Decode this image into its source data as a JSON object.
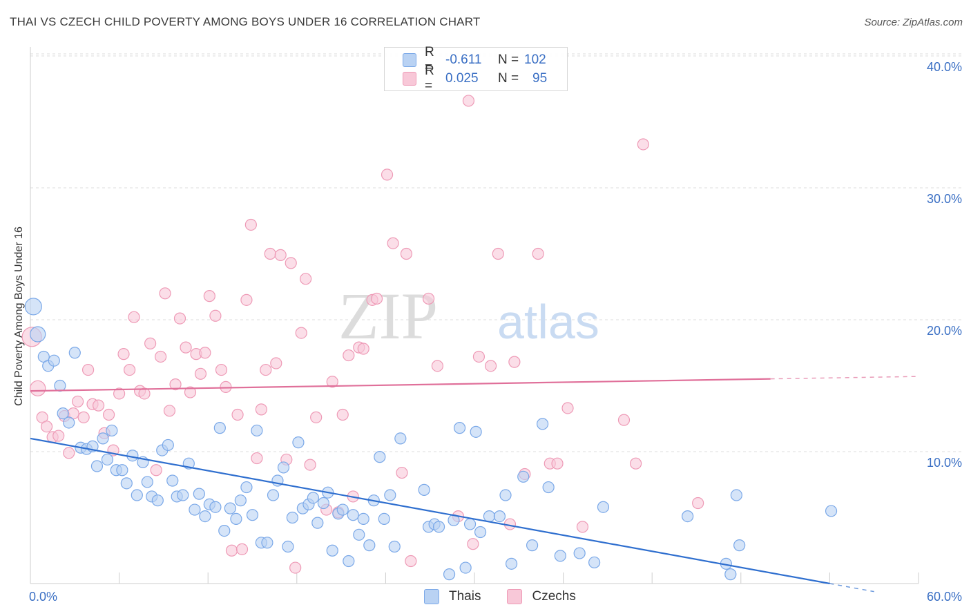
{
  "header": {
    "title": "THAI VS CZECH CHILD POVERTY AMONG BOYS UNDER 16 CORRELATION CHART",
    "source": "Source: ZipAtlas.com"
  },
  "watermark": {
    "zip": "ZIP",
    "atlas": "atlas"
  },
  "legend_top": {
    "rows": [
      {
        "r_label": "R =",
        "r_value": "-0.611",
        "n_label": "N =",
        "n_value": "102"
      },
      {
        "r_label": "R =",
        "r_value": "0.025",
        "n_label": "N =",
        "n_value": "95"
      }
    ]
  },
  "legend_bottom": {
    "items": [
      {
        "label": "Thais"
      },
      {
        "label": "Czechs"
      }
    ]
  },
  "chart_data": {
    "type": "scatter",
    "title": "THAI VS CZECH CHILD POVERTY AMONG BOYS UNDER 16 CORRELATION CHART",
    "xlabel": "",
    "ylabel": "Child Poverty Among Boys Under 16",
    "xlim": [
      0,
      60
    ],
    "ylim": [
      0,
      41
    ],
    "x_tick_labels": [
      "0.0%",
      "60.0%"
    ],
    "y_ticks": [
      10,
      20,
      30,
      40
    ],
    "y_tick_labels": [
      "10.0%",
      "20.0%",
      "30.0%",
      "40.0%"
    ],
    "grid": true,
    "legend_position": "top-center",
    "series": [
      {
        "name": "Thais",
        "color": "#7aa8e8",
        "fill": "#b9d2f3",
        "line_color": "#2f6fcf",
        "R": -0.611,
        "N": 102,
        "trend": {
          "x": [
            0,
            54
          ],
          "y": [
            11.0,
            0.0
          ],
          "dashed_from": 54
        },
        "points": [
          [
            0.2,
            21.0
          ],
          [
            0.5,
            18.9
          ],
          [
            0.9,
            17.2
          ],
          [
            1.2,
            16.5
          ],
          [
            1.6,
            16.9
          ],
          [
            2.0,
            15.0
          ],
          [
            2.2,
            12.9
          ],
          [
            2.6,
            12.2
          ],
          [
            3.0,
            17.5
          ],
          [
            3.4,
            10.3
          ],
          [
            3.8,
            10.2
          ],
          [
            4.2,
            10.4
          ],
          [
            4.5,
            8.9
          ],
          [
            4.9,
            11.0
          ],
          [
            5.2,
            9.4
          ],
          [
            5.5,
            11.6
          ],
          [
            5.8,
            8.6
          ],
          [
            6.2,
            8.6
          ],
          [
            6.5,
            7.6
          ],
          [
            6.9,
            9.7
          ],
          [
            7.2,
            6.7
          ],
          [
            7.6,
            9.2
          ],
          [
            7.9,
            7.7
          ],
          [
            8.2,
            6.6
          ],
          [
            8.6,
            6.3
          ],
          [
            8.9,
            10.1
          ],
          [
            9.3,
            10.5
          ],
          [
            9.6,
            7.8
          ],
          [
            9.9,
            6.6
          ],
          [
            10.3,
            6.7
          ],
          [
            10.7,
            9.1
          ],
          [
            11.1,
            5.6
          ],
          [
            11.4,
            6.8
          ],
          [
            11.8,
            5.1
          ],
          [
            12.1,
            6.0
          ],
          [
            12.5,
            5.8
          ],
          [
            12.8,
            11.8
          ],
          [
            13.1,
            4.0
          ],
          [
            13.5,
            5.7
          ],
          [
            13.9,
            4.9
          ],
          [
            14.2,
            6.3
          ],
          [
            14.6,
            7.3
          ],
          [
            15.0,
            5.2
          ],
          [
            15.3,
            11.6
          ],
          [
            15.6,
            3.1
          ],
          [
            16.0,
            3.1
          ],
          [
            16.4,
            6.7
          ],
          [
            16.7,
            7.8
          ],
          [
            17.1,
            8.8
          ],
          [
            17.4,
            2.8
          ],
          [
            17.7,
            5.0
          ],
          [
            18.1,
            10.7
          ],
          [
            18.4,
            5.7
          ],
          [
            18.8,
            6.0
          ],
          [
            19.1,
            6.5
          ],
          [
            19.4,
            4.6
          ],
          [
            19.8,
            6.1
          ],
          [
            20.1,
            6.9
          ],
          [
            20.4,
            2.5
          ],
          [
            20.8,
            5.3
          ],
          [
            21.1,
            5.6
          ],
          [
            21.5,
            1.7
          ],
          [
            21.8,
            5.2
          ],
          [
            22.2,
            3.7
          ],
          [
            22.5,
            4.9
          ],
          [
            22.9,
            2.9
          ],
          [
            23.2,
            6.3
          ],
          [
            23.6,
            9.6
          ],
          [
            23.9,
            4.9
          ],
          [
            24.3,
            6.7
          ],
          [
            24.6,
            2.8
          ],
          [
            25.0,
            11.0
          ],
          [
            26.6,
            7.1
          ],
          [
            26.9,
            4.3
          ],
          [
            27.3,
            4.5
          ],
          [
            27.6,
            4.3
          ],
          [
            28.3,
            0.7
          ],
          [
            28.6,
            4.8
          ],
          [
            29.0,
            11.8
          ],
          [
            29.4,
            1.2
          ],
          [
            29.7,
            4.5
          ],
          [
            30.1,
            11.5
          ],
          [
            30.4,
            3.9
          ],
          [
            31.0,
            5.1
          ],
          [
            31.7,
            5.1
          ],
          [
            32.1,
            6.7
          ],
          [
            32.5,
            1.5
          ],
          [
            33.3,
            8.1
          ],
          [
            33.9,
            2.9
          ],
          [
            34.6,
            12.1
          ],
          [
            35.0,
            7.3
          ],
          [
            35.8,
            2.1
          ],
          [
            37.1,
            2.3
          ],
          [
            38.1,
            1.6
          ],
          [
            38.7,
            5.8
          ],
          [
            44.4,
            5.1
          ],
          [
            47.0,
            1.5
          ],
          [
            47.3,
            0.7
          ],
          [
            47.7,
            6.7
          ],
          [
            47.9,
            2.9
          ],
          [
            54.1,
            5.5
          ]
        ]
      },
      {
        "name": "Czechs",
        "color": "#ee9ab6",
        "fill": "#f8c8d8",
        "line_color": "#e0709a",
        "R": 0.025,
        "N": 95,
        "trend": {
          "x": [
            0,
            60
          ],
          "y": [
            14.6,
            15.7
          ],
          "dashed_from": 50
        },
        "points": [
          [
            0.1,
            18.7
          ],
          [
            0.5,
            14.8
          ],
          [
            0.8,
            12.6
          ],
          [
            1.1,
            11.9
          ],
          [
            1.5,
            11.1
          ],
          [
            1.9,
            11.2
          ],
          [
            2.3,
            12.7
          ],
          [
            2.6,
            9.9
          ],
          [
            2.9,
            12.9
          ],
          [
            3.2,
            13.8
          ],
          [
            3.6,
            12.6
          ],
          [
            3.9,
            16.2
          ],
          [
            4.2,
            13.6
          ],
          [
            4.6,
            13.5
          ],
          [
            5.0,
            11.4
          ],
          [
            5.3,
            12.8
          ],
          [
            5.6,
            10.1
          ],
          [
            6.0,
            14.4
          ],
          [
            6.3,
            17.4
          ],
          [
            6.7,
            16.2
          ],
          [
            7.0,
            20.2
          ],
          [
            7.4,
            14.6
          ],
          [
            7.7,
            14.4
          ],
          [
            8.1,
            18.2
          ],
          [
            8.5,
            8.6
          ],
          [
            8.8,
            17.2
          ],
          [
            9.1,
            22.0
          ],
          [
            9.4,
            13.1
          ],
          [
            9.8,
            15.1
          ],
          [
            10.1,
            20.1
          ],
          [
            10.5,
            17.9
          ],
          [
            10.8,
            14.5
          ],
          [
            11.2,
            17.4
          ],
          [
            11.5,
            15.9
          ],
          [
            11.8,
            17.5
          ],
          [
            12.1,
            21.8
          ],
          [
            12.5,
            20.3
          ],
          [
            12.9,
            16.2
          ],
          [
            13.2,
            14.9
          ],
          [
            13.6,
            2.5
          ],
          [
            14.0,
            12.8
          ],
          [
            14.3,
            2.6
          ],
          [
            14.6,
            21.5
          ],
          [
            14.9,
            27.2
          ],
          [
            15.3,
            9.5
          ],
          [
            15.6,
            13.2
          ],
          [
            15.9,
            16.2
          ],
          [
            16.2,
            25.0
          ],
          [
            16.6,
            16.7
          ],
          [
            16.9,
            24.9
          ],
          [
            17.3,
            9.4
          ],
          [
            17.6,
            24.3
          ],
          [
            17.9,
            1.2
          ],
          [
            18.3,
            19.0
          ],
          [
            18.6,
            23.1
          ],
          [
            18.9,
            9.0
          ],
          [
            19.3,
            12.6
          ],
          [
            20.0,
            5.6
          ],
          [
            20.4,
            15.3
          ],
          [
            20.8,
            5.4
          ],
          [
            21.1,
            12.8
          ],
          [
            21.5,
            17.3
          ],
          [
            21.8,
            6.6
          ],
          [
            22.2,
            17.9
          ],
          [
            22.5,
            17.8
          ],
          [
            23.1,
            21.5
          ],
          [
            23.4,
            21.6
          ],
          [
            24.1,
            31.0
          ],
          [
            24.5,
            25.8
          ],
          [
            25.1,
            8.4
          ],
          [
            25.4,
            25.0
          ],
          [
            25.7,
            1.7
          ],
          [
            26.9,
            21.6
          ],
          [
            27.5,
            16.5
          ],
          [
            28.9,
            5.1
          ],
          [
            29.6,
            36.6
          ],
          [
            29.9,
            3.0
          ],
          [
            30.3,
            17.2
          ],
          [
            31.1,
            16.5
          ],
          [
            31.6,
            25.0
          ],
          [
            32.4,
            4.5
          ],
          [
            32.7,
            16.8
          ],
          [
            33.4,
            8.3
          ],
          [
            34.3,
            25.0
          ],
          [
            35.1,
            9.1
          ],
          [
            35.6,
            9.1
          ],
          [
            36.3,
            13.3
          ],
          [
            37.3,
            4.3
          ],
          [
            40.1,
            12.4
          ],
          [
            40.9,
            9.1
          ],
          [
            41.4,
            33.3
          ],
          [
            45.1,
            6.1
          ]
        ]
      }
    ]
  }
}
